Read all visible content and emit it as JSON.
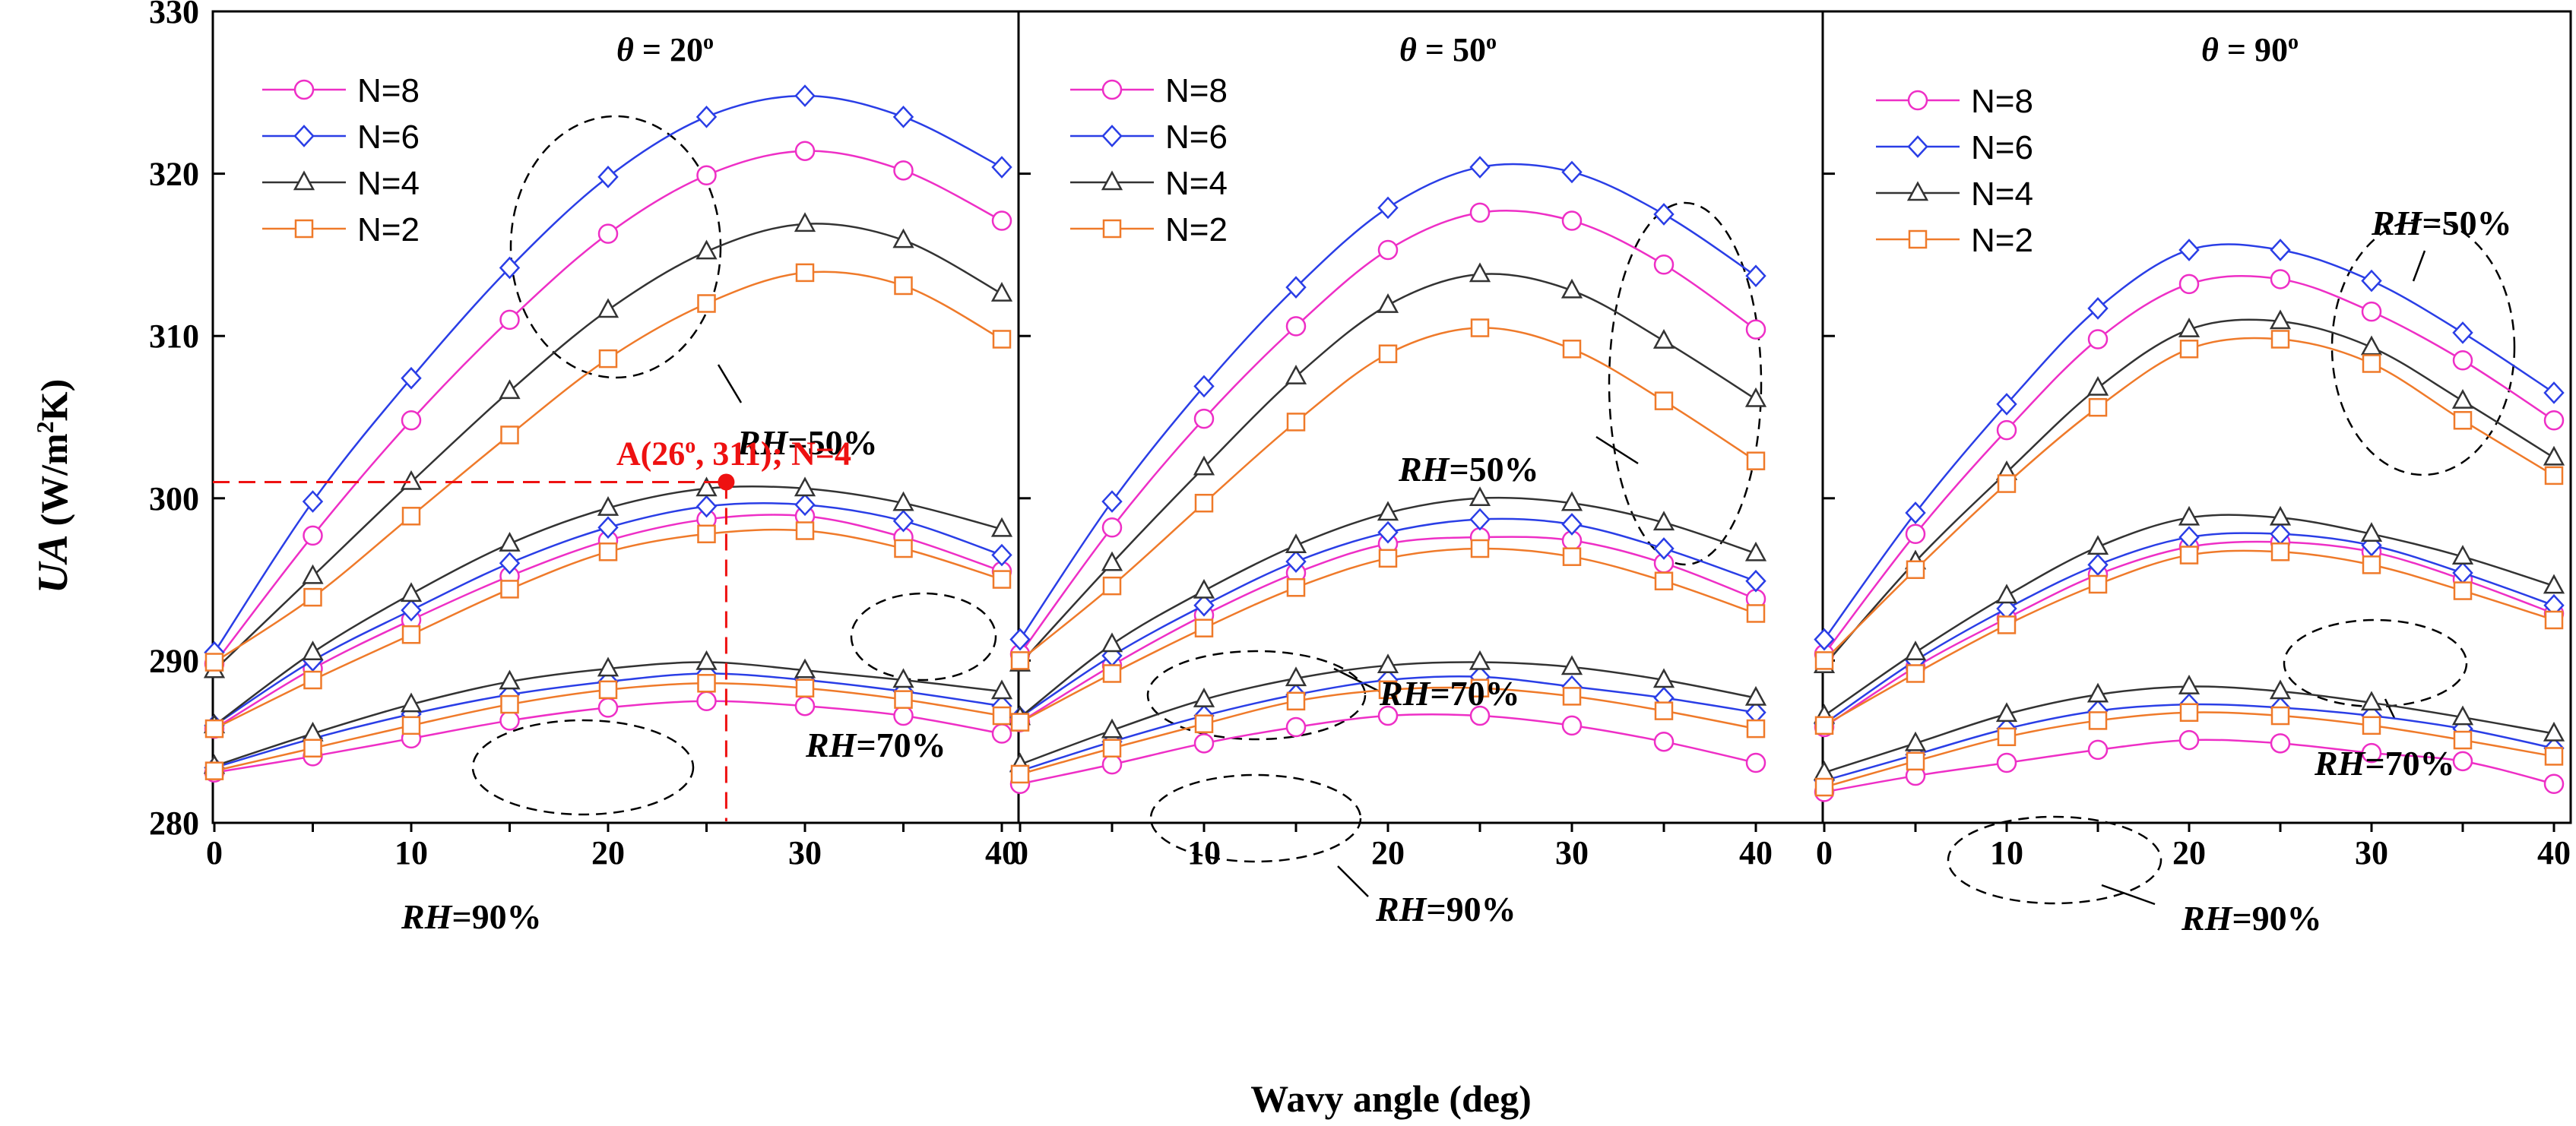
{
  "chart_data": {
    "type": "line",
    "xlabel": "Wavy angle (deg)",
    "ylabel_main": "UA",
    "ylabel_unit_pre": "(W/m",
    "ylabel_unit_sup": "2",
    "ylabel_unit_post": "K)",
    "xlim": [
      0,
      40
    ],
    "ylim": [
      280,
      330
    ],
    "x": [
      0,
      5,
      10,
      15,
      20,
      25,
      30,
      35,
      40
    ],
    "x_ticks": [
      "0",
      "10",
      "20",
      "30",
      "40"
    ],
    "y_ticks": [
      "280",
      "290",
      "300",
      "310",
      "320",
      "330"
    ],
    "legend": [
      "N=8",
      "N=6",
      "N=4",
      "N=2"
    ],
    "colors": {
      "N=8": "#ee2fc6",
      "N=6": "#2a3ee6",
      "N=4": "#333333",
      "N=2": "#ef7a2a",
      "highlight": "#ee1111"
    },
    "markers": {
      "N=8": "circle",
      "N=6": "diamond",
      "N=4": "triangle",
      "N=2": "square"
    },
    "panels": [
      {
        "title_theta": "θ",
        "title_rest": " = 20",
        "title_sup": "o",
        "groups": [
          {
            "RH": "50%",
            "series": [
              {
                "name": "N=8",
                "values": [
                  289.8,
                  297.7,
                  304.8,
                  311.0,
                  316.3,
                  319.9,
                  321.4,
                  320.2,
                  317.1
                ]
              },
              {
                "name": "N=6",
                "values": [
                  290.5,
                  299.8,
                  307.4,
                  314.2,
                  319.8,
                  323.5,
                  324.8,
                  323.5,
                  320.4
                ]
              },
              {
                "name": "N=4",
                "values": [
                  289.4,
                  295.2,
                  301.0,
                  306.6,
                  311.6,
                  315.2,
                  316.9,
                  315.9,
                  312.6
                ]
              },
              {
                "name": "N=2",
                "values": [
                  289.9,
                  293.9,
                  298.9,
                  303.9,
                  308.6,
                  312.0,
                  313.9,
                  313.1,
                  309.8
                ]
              }
            ]
          },
          {
            "RH": "70%",
            "series": [
              {
                "name": "N=8",
                "values": [
                  285.8,
                  289.5,
                  292.5,
                  295.2,
                  297.4,
                  298.7,
                  298.9,
                  297.6,
                  295.5
                ]
              },
              {
                "name": "N=6",
                "values": [
                  286.0,
                  290.0,
                  293.1,
                  296.0,
                  298.2,
                  299.5,
                  299.6,
                  298.6,
                  296.5
                ]
              },
              {
                "name": "N=4",
                "values": [
                  286.0,
                  290.5,
                  294.1,
                  297.2,
                  299.4,
                  300.6,
                  300.6,
                  299.7,
                  298.1
                ]
              },
              {
                "name": "N=2",
                "values": [
                  285.8,
                  288.8,
                  291.6,
                  294.4,
                  296.7,
                  297.8,
                  298.0,
                  296.9,
                  295.0
                ]
              }
            ]
          },
          {
            "RH": "90%",
            "series": [
              {
                "name": "N=8",
                "values": [
                  283.1,
                  284.1,
                  285.2,
                  286.3,
                  287.1,
                  287.5,
                  287.2,
                  286.6,
                  285.5
                ]
              },
              {
                "name": "N=6",
                "values": [
                  283.4,
                  285.2,
                  286.7,
                  287.9,
                  288.7,
                  289.2,
                  288.8,
                  288.1,
                  287.2
                ]
              },
              {
                "name": "N=4",
                "values": [
                  283.5,
                  285.5,
                  287.3,
                  288.7,
                  289.5,
                  289.9,
                  289.4,
                  288.8,
                  288.1
                ]
              },
              {
                "name": "N=2",
                "values": [
                  283.2,
                  284.6,
                  286.0,
                  287.3,
                  288.2,
                  288.6,
                  288.3,
                  287.6,
                  286.6
                ]
              }
            ]
          }
        ]
      },
      {
        "title_theta": "θ",
        "title_rest": " = 50",
        "title_sup": "o",
        "groups": [
          {
            "RH": "50%",
            "series": [
              {
                "name": "N=8",
                "values": [
                  290.4,
                  298.2,
                  304.9,
                  310.6,
                  315.3,
                  317.6,
                  317.1,
                  314.4,
                  310.4
                ]
              },
              {
                "name": "N=6",
                "values": [
                  291.3,
                  299.8,
                  306.9,
                  313.0,
                  317.9,
                  320.4,
                  320.1,
                  317.5,
                  313.7
                ]
              },
              {
                "name": "N=4",
                "values": [
                  289.8,
                  296.0,
                  301.9,
                  307.5,
                  311.9,
                  313.8,
                  312.8,
                  309.7,
                  306.1
                ]
              },
              {
                "name": "N=2",
                "values": [
                  290.0,
                  294.6,
                  299.7,
                  304.7,
                  308.9,
                  310.5,
                  309.2,
                  306.0,
                  302.3
                ]
              }
            ]
          },
          {
            "RH": "70%",
            "series": [
              {
                "name": "N=8",
                "values": [
                  286.2,
                  289.7,
                  292.8,
                  295.4,
                  297.2,
                  297.6,
                  297.4,
                  296.0,
                  293.8
                ]
              },
              {
                "name": "N=6",
                "values": [
                  286.5,
                  290.3,
                  293.4,
                  296.1,
                  297.9,
                  298.7,
                  298.4,
                  296.9,
                  294.9
                ]
              },
              {
                "name": "N=4",
                "values": [
                  286.5,
                  291.0,
                  294.3,
                  297.1,
                  299.1,
                  300.0,
                  299.7,
                  298.5,
                  296.6
                ]
              },
              {
                "name": "N=2",
                "values": [
                  286.2,
                  289.2,
                  292.0,
                  294.5,
                  296.3,
                  296.9,
                  296.4,
                  294.9,
                  292.9
                ]
              }
            ]
          },
          {
            "RH": "90%",
            "series": [
              {
                "name": "N=8",
                "values": [
                  282.4,
                  283.6,
                  284.9,
                  285.9,
                  286.6,
                  286.6,
                  286.0,
                  285.0,
                  283.7
                ]
              },
              {
                "name": "N=6",
                "values": [
                  283.2,
                  285.0,
                  286.6,
                  287.9,
                  288.8,
                  289.0,
                  288.4,
                  287.7,
                  286.8
                ]
              },
              {
                "name": "N=4",
                "values": [
                  283.6,
                  285.7,
                  287.6,
                  288.9,
                  289.7,
                  289.9,
                  289.6,
                  288.8,
                  287.7
                ]
              },
              {
                "name": "N=2",
                "values": [
                  283.0,
                  284.6,
                  286.1,
                  287.5,
                  288.2,
                  288.3,
                  287.8,
                  286.9,
                  285.8
                ]
              }
            ]
          }
        ]
      },
      {
        "title_theta": "θ",
        "title_rest": " = 90",
        "title_sup": "o",
        "groups": [
          {
            "RH": "50%",
            "series": [
              {
                "name": "N=8",
                "values": [
                  290.4,
                  297.8,
                  304.2,
                  309.8,
                  313.2,
                  313.5,
                  311.5,
                  308.5,
                  304.8
                ]
              },
              {
                "name": "N=6",
                "values": [
                  291.3,
                  299.1,
                  305.8,
                  311.7,
                  315.3,
                  315.3,
                  313.4,
                  310.2,
                  306.5
                ]
              },
              {
                "name": "N=4",
                "values": [
                  289.7,
                  296.1,
                  301.6,
                  306.8,
                  310.4,
                  310.9,
                  309.3,
                  306.0,
                  302.5
                ]
              },
              {
                "name": "N=2",
                "values": [
                  290.0,
                  295.6,
                  300.9,
                  305.6,
                  309.2,
                  309.8,
                  308.3,
                  304.8,
                  301.4
                ]
              }
            ]
          },
          {
            "RH": "70%",
            "series": [
              {
                "name": "N=8",
                "values": [
                  285.9,
                  289.6,
                  292.6,
                  295.3,
                  297.0,
                  297.3,
                  296.7,
                  295.0,
                  292.9
                ]
              },
              {
                "name": "N=6",
                "values": [
                  286.1,
                  290.0,
                  293.2,
                  295.9,
                  297.6,
                  297.8,
                  297.1,
                  295.4,
                  293.4
                ]
              },
              {
                "name": "N=4",
                "values": [
                  286.6,
                  290.5,
                  294.0,
                  297.0,
                  298.8,
                  298.8,
                  297.8,
                  296.4,
                  294.6
                ]
              },
              {
                "name": "N=2",
                "values": [
                  286.0,
                  289.2,
                  292.2,
                  294.7,
                  296.5,
                  296.7,
                  295.9,
                  294.3,
                  292.5
                ]
              }
            ]
          },
          {
            "RH": "90%",
            "series": [
              {
                "name": "N=8",
                "values": [
                  281.9,
                  282.9,
                  283.7,
                  284.5,
                  285.1,
                  284.9,
                  284.3,
                  283.8,
                  282.4
                ]
              },
              {
                "name": "N=6",
                "values": [
                  282.6,
                  284.2,
                  285.8,
                  286.9,
                  287.3,
                  287.1,
                  286.6,
                  285.8,
                  284.6
                ]
              },
              {
                "name": "N=4",
                "values": [
                  283.1,
                  284.9,
                  286.7,
                  287.9,
                  288.4,
                  288.1,
                  287.4,
                  286.5,
                  285.5
                ]
              },
              {
                "name": "N=2",
                "values": [
                  282.2,
                  283.8,
                  285.3,
                  286.3,
                  286.8,
                  286.6,
                  286.0,
                  285.1,
                  284.1
                ]
              }
            ]
          }
        ]
      }
    ],
    "annotations": {
      "rh50": "=50%",
      "rh70": "=70%",
      "rh90": "=90%",
      "rh_prefix": "RH",
      "point_A": {
        "x": 26,
        "y": 301,
        "label_pre": "A(26",
        "label_sup": "o",
        "label_post": ", 311); N=4"
      }
    }
  }
}
